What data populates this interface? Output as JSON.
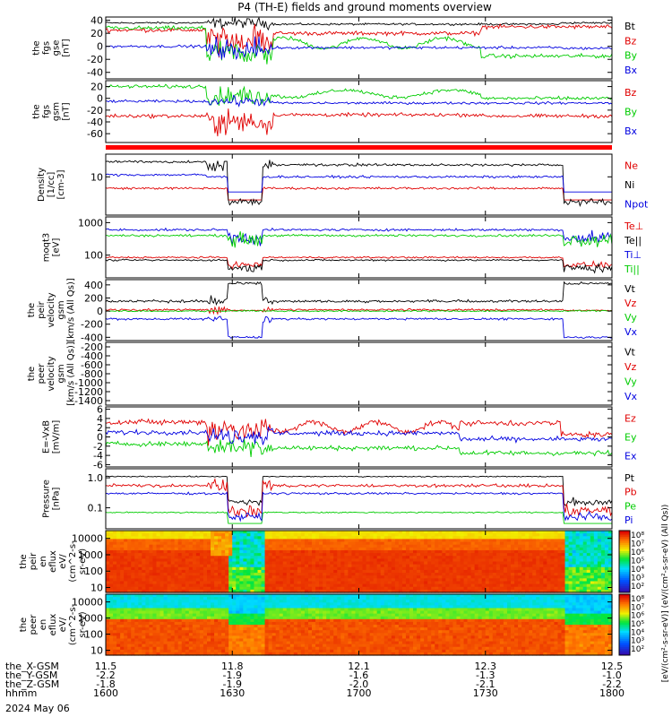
{
  "chart_data": {
    "type": "line",
    "title": "P4 (TH-E) fields and ground moments overview",
    "date": "2024 May 06",
    "x_axis": {
      "rows": [
        {
          "label": "the_X-GSM",
          "values": [
            "11.5",
            "11.8",
            "12.1",
            "12.3",
            "12.5"
          ]
        },
        {
          "label": "the_Y-GSM",
          "values": [
            "-2.2",
            "-1.9",
            "-1.6",
            "-1.3",
            "-1.0"
          ]
        },
        {
          "label": "the_Z-GSM",
          "values": [
            "-1.8",
            "-1.9",
            "-2.0",
            "-2.1",
            "-2.2"
          ]
        },
        {
          "label": "hhmm",
          "values": [
            "1600",
            "1630",
            "1700",
            "1730",
            "1800"
          ]
        }
      ]
    },
    "panels": [
      {
        "id": "fgs_gse",
        "ylabel": [
          "the",
          "fgs",
          "gse",
          "[nT]"
        ],
        "ticks": [
          "40",
          "20",
          "0",
          "-20",
          "-40"
        ],
        "ylim": [
          -50,
          45
        ],
        "log": false,
        "series": [
          {
            "name": "Bt",
            "color": "#000000"
          },
          {
            "name": "Bz",
            "color": "#e00000"
          },
          {
            "name": "By",
            "color": "#00cc00"
          },
          {
            "name": "Bx",
            "color": "#0000e0"
          }
        ]
      },
      {
        "id": "fgs_gsm",
        "ylabel": [
          "the",
          "fgs",
          "gsm",
          "[nT]"
        ],
        "ticks": [
          "20",
          "0",
          "-20",
          "-40",
          "-60"
        ],
        "ylim": [
          -75,
          30
        ],
        "log": false,
        "series": [
          {
            "name": "Bz",
            "color": "#e00000"
          },
          {
            "name": "By",
            "color": "#00cc00"
          },
          {
            "name": "Bx",
            "color": "#0000e0"
          }
        ]
      },
      {
        "id": "density",
        "ylabel": [
          "Density",
          "[1/cc]",
          "[cm-3]"
        ],
        "ticks": [
          "10"
        ],
        "ylim": [
          0.3,
          80
        ],
        "log": true,
        "series": [
          {
            "name": "Ne",
            "color": "#e00000"
          },
          {
            "name": "Ni",
            "color": "#000000"
          },
          {
            "name": "Npot",
            "color": "#0000e0"
          }
        ]
      },
      {
        "id": "temperature",
        "ylabel": [
          "moqt3",
          "[eV]"
        ],
        "ticks": [
          "1000",
          "100"
        ],
        "ylim": [
          20,
          1500
        ],
        "log": true,
        "series": [
          {
            "name": "Te⊥",
            "color": "#e00000"
          },
          {
            "name": "Te||",
            "color": "#000000"
          },
          {
            "name": "Ti⊥",
            "color": "#0000e0"
          },
          {
            "name": "Ti||",
            "color": "#00cc00"
          }
        ]
      },
      {
        "id": "peir_velocity",
        "ylabel": [
          "the",
          "peir",
          "velocity",
          "gsm",
          "[km/s (All Qs)]"
        ],
        "ticks": [
          "400",
          "200",
          "0",
          "-200",
          "-400"
        ],
        "ylim": [
          -450,
          480
        ],
        "log": false,
        "series": [
          {
            "name": "Vt",
            "color": "#000000"
          },
          {
            "name": "Vz",
            "color": "#e00000"
          },
          {
            "name": "Vy",
            "color": "#00cc00"
          },
          {
            "name": "Vx",
            "color": "#0000e0"
          }
        ]
      },
      {
        "id": "peer_velocity",
        "ylabel": [
          "the",
          "peer",
          "velocity",
          "gsm",
          "[km/s (All Qs)]"
        ],
        "ticks": [
          "-200",
          "-400",
          "-600",
          "-800",
          "-1000",
          "-1200",
          "-1400"
        ],
        "ylim": [
          -1500,
          -100
        ],
        "log": false,
        "series": [
          {
            "name": "Vt",
            "color": "#000000"
          },
          {
            "name": "Vz",
            "color": "#e00000"
          },
          {
            "name": "Vy",
            "color": "#00cc00"
          },
          {
            "name": "Vx",
            "color": "#0000e0"
          }
        ]
      },
      {
        "id": "efield",
        "ylabel": [
          "E=-VxB",
          "[mV/m]"
        ],
        "ticks": [
          "6",
          "4",
          "2",
          "0",
          "-2",
          "-4",
          "-6"
        ],
        "ylim": [
          -6.5,
          6.5
        ],
        "log": false,
        "series": [
          {
            "name": "Ez",
            "color": "#e00000"
          },
          {
            "name": "Ey",
            "color": "#00cc00"
          },
          {
            "name": "Ex",
            "color": "#0000e0"
          }
        ]
      },
      {
        "id": "pressure",
        "ylabel": [
          "Pressure",
          "[nPa]"
        ],
        "ticks": [
          "1.0",
          "0.1"
        ],
        "ylim": [
          0.02,
          2.0
        ],
        "log": true,
        "series": [
          {
            "name": "Pt",
            "color": "#000000"
          },
          {
            "name": "Pb",
            "color": "#e00000"
          },
          {
            "name": "Pe",
            "color": "#00cc00"
          },
          {
            "name": "Pi",
            "color": "#0000e0"
          }
        ]
      },
      {
        "id": "peir_spec",
        "ylabel": [
          "the",
          "peir",
          "en",
          "eflux",
          "eV/",
          "(cm^2-s-",
          "sr-eV)"
        ],
        "ticks": [
          "10000",
          "1000",
          "100",
          "10"
        ],
        "ylim": [
          5,
          30000
        ],
        "log": true,
        "type": "heatmap"
      },
      {
        "id": "peer_spec",
        "ylabel": [
          "the",
          "peer",
          "en",
          "eflux",
          "eV/",
          "(cm^2-s-",
          "sr-eV)"
        ],
        "ticks": [
          "10000",
          "1000",
          "100",
          "10"
        ],
        "ylim": [
          5,
          30000
        ],
        "log": true,
        "type": "heatmap"
      }
    ],
    "colorbars": [
      {
        "ticks": [
          "10⁸",
          "10⁷",
          "10⁶",
          "10⁵",
          "10⁴",
          "10³",
          "10²"
        ]
      },
      {
        "ticks": [
          "10⁸",
          "10⁷",
          "10⁶",
          "10⁵",
          "10⁴",
          "10³",
          "10²"
        ]
      }
    ],
    "colorbar_label": "[eV/(cm²-s-sr-eV)] (eV/(cm²-s-sr-eV) (All Qs))"
  }
}
